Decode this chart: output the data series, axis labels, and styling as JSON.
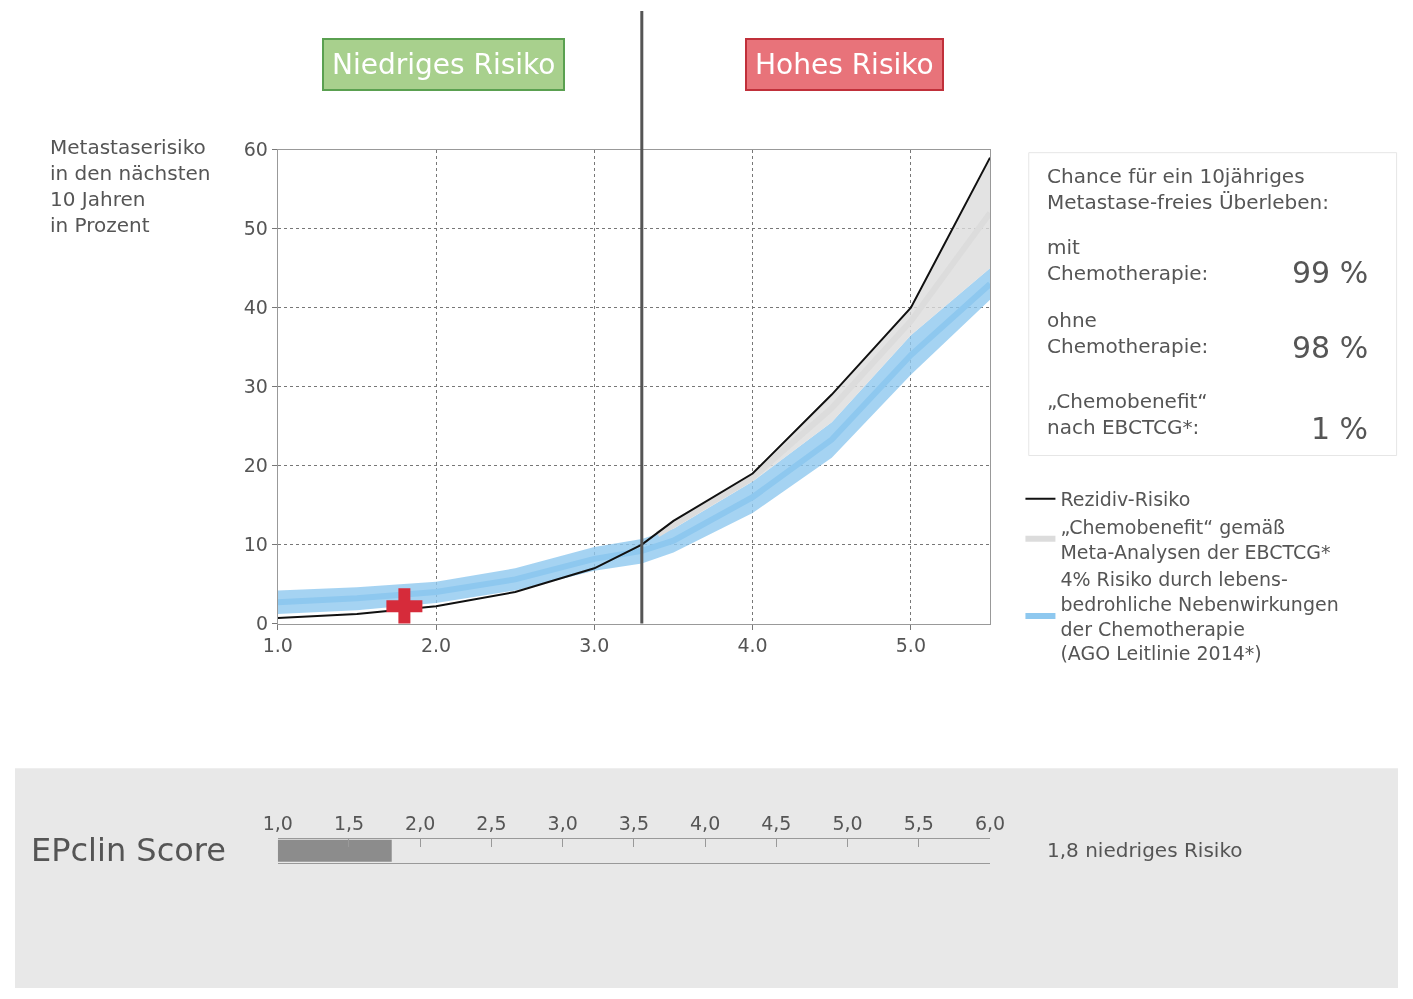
{
  "chart_data": [
    {
      "type": "line",
      "ylabel": "Metastaserisiko\nin den nächsten\n10 Jahren\nin Prozent",
      "xlim": [
        1.0,
        5.5
      ],
      "ylim": [
        0,
        60
      ],
      "xticks": [
        {
          "value": 1,
          "label": "1.0"
        },
        {
          "value": 2,
          "label": "2.0"
        },
        {
          "value": 3,
          "label": "3.0"
        },
        {
          "value": 4,
          "label": "4.0"
        },
        {
          "value": 5,
          "label": "5.0"
        }
      ],
      "yticks": [
        0,
        10,
        20,
        30,
        40,
        50,
        60
      ],
      "grid": true,
      "legend": "right",
      "series": [
        {
          "type": "line",
          "name": "4% Risiko durch lebens-\nbedrohliche Nebenwirkungen\nder Chemotherapie\n(AGO Leitlinie 2014*)",
          "color": "#8ec8ef",
          "x": [
            1,
            1.5,
            2,
            2.5,
            3,
            3.3,
            3.5,
            4,
            4.5,
            5,
            5.5
          ],
          "values": [
            2.7,
            3.2,
            4.0,
            5.6,
            8.2,
            9.2,
            10.5,
            16,
            23.3,
            34,
            43
          ],
          "lower": [
            1.2,
            1.7,
            2.6,
            4.2,
            6.7,
            7.6,
            9,
            14,
            21,
            31.5,
            41
          ],
          "upper": [
            4.2,
            4.6,
            5.3,
            7,
            9.7,
            10.7,
            12,
            18,
            25.5,
            36.5,
            45
          ]
        },
        {
          "type": "line",
          "name": "„Chemobenefit“ gemäß\nMeta-Analysen der EBCTCG*",
          "color": "#dcdcdc",
          "x": [
            3.4,
            3.5,
            4,
            4.5,
            5,
            5.5
          ],
          "values": [
            11.3,
            12.5,
            18.5,
            27.3,
            38.3,
            52
          ],
          "lower": [
            11.3,
            12,
            18,
            25.5,
            36.5,
            45
          ],
          "upper": [
            11.3,
            13,
            19,
            29,
            40,
            59
          ]
        },
        {
          "name": "Rezidiv-Risiko",
          "color": "#111111",
          "x": [
            1,
            1.5,
            2,
            2.5,
            3,
            3.3,
            3.5,
            4,
            4.5,
            5,
            5.5
          ],
          "values": [
            0.7,
            1.2,
            2.2,
            4,
            7,
            10,
            13,
            19,
            29,
            40,
            59
          ]
        },
        {
          "type": "scatter",
          "color": "#d62b3a",
          "marker": "cross",
          "x": [
            1.8
          ],
          "values": [
            2.2
          ]
        }
      ],
      "ref_lines": [
        {
          "axis": "x",
          "value": 3.3,
          "color": "#555555"
        }
      ],
      "annotations": [
        "Niedriges Risiko",
        "Hohes Risiko",
        "Chance für ein 10jähriges\nMetastase-freies Überleben:",
        "mit\nChemotherapie:",
        "99 %",
        "ohne\nChemotherapie:",
        "98 %",
        "„Chemobenefit“\nnach EBCTCG*:",
        "1 %"
      ]
    },
    {
      "type": "bar",
      "orientation": "horizontal",
      "categories": [
        null
      ],
      "base": [
        1.0
      ],
      "values": [
        0.8
      ],
      "color": "#8c8c8c",
      "title": "EPclin Score",
      "xlim": [
        1.0,
        6.0
      ],
      "xticks": [
        {
          "value": 1,
          "label": "1,0"
        },
        {
          "value": 1.5,
          "label": "1,5"
        },
        {
          "value": 2,
          "label": "2,0"
        },
        {
          "value": 2.5,
          "label": "2,5"
        },
        {
          "value": 3,
          "label": "3,0"
        },
        {
          "value": 3.5,
          "label": "3,5"
        },
        {
          "value": 4,
          "label": "4,0"
        },
        {
          "value": 4.5,
          "label": "4,5"
        },
        {
          "value": 5,
          "label": "5,0"
        },
        {
          "value": 5.5,
          "label": "5,5"
        },
        {
          "value": 6,
          "label": "6,0"
        }
      ],
      "annotations": [
        "1,8 niedriges Risiko"
      ]
    }
  ]
}
